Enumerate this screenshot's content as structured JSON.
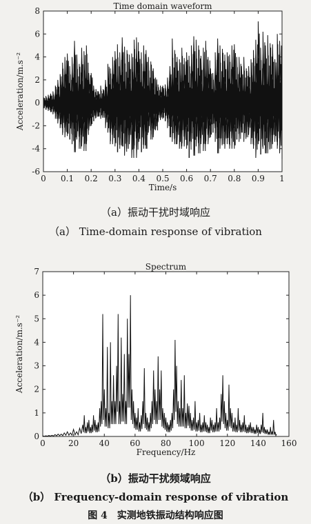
{
  "charts": [
    {
      "chart_data": {
        "type": "line",
        "title": "Time domain waveform",
        "xlabel": "Time/s",
        "ylabel": "Acceleration/m.s⁻²",
        "xlim": [
          0,
          1
        ],
        "ylim": [
          -6,
          8
        ],
        "xticks": [
          0,
          0.1,
          0.2,
          0.3,
          0.4,
          0.5,
          0.6,
          0.7,
          0.8,
          0.9,
          1
        ],
        "xtick_labels": [
          "0",
          "0.1",
          "0.2",
          "0.3",
          "0.4",
          "0.5",
          "0.6",
          "0.7",
          "0.8",
          "0.9",
          "1"
        ],
        "yticks": [
          -6,
          -4,
          -2,
          0,
          2,
          4,
          6,
          8
        ],
        "ytick_labels": [
          "-6",
          "-4",
          "-2",
          "0",
          "2",
          "4",
          "6",
          "8"
        ],
        "grid": false,
        "series": [
          {
            "x": [
              0.0,
              0.01,
              0.02,
              0.03,
              0.04,
              0.05,
              0.06,
              0.07,
              0.08,
              0.09,
              0.1,
              0.11,
              0.12,
              0.13,
              0.14,
              0.15,
              0.16,
              0.17,
              0.18,
              0.19,
              0.2,
              0.21,
              0.22,
              0.23,
              0.24,
              0.25,
              0.26,
              0.27,
              0.28,
              0.29,
              0.3,
              0.31,
              0.32,
              0.33,
              0.34,
              0.35,
              0.36,
              0.37,
              0.38,
              0.39,
              0.4,
              0.41,
              0.42,
              0.43,
              0.44,
              0.45,
              0.46,
              0.47,
              0.48,
              0.49,
              0.5,
              0.51,
              0.52,
              0.53,
              0.54,
              0.55,
              0.56,
              0.57,
              0.58,
              0.59,
              0.6,
              0.61,
              0.62,
              0.63,
              0.64,
              0.65,
              0.66,
              0.67,
              0.68,
              0.69,
              0.7,
              0.71,
              0.72,
              0.73,
              0.74,
              0.75,
              0.76,
              0.77,
              0.78,
              0.79,
              0.8,
              0.81,
              0.82,
              0.83,
              0.84,
              0.85,
              0.86,
              0.87,
              0.88,
              0.89,
              0.9,
              0.91,
              0.92,
              0.93,
              0.94,
              0.95,
              0.96,
              0.97,
              0.98,
              0.99,
              1.0
            ],
            "ymax": [
              0.5,
              0.6,
              0.7,
              0.8,
              1.0,
              1.5,
              2.0,
              2.5,
              3.5,
              4.0,
              4.3,
              3.2,
              4.0,
              5.4,
              4.2,
              3.4,
              4.8,
              4.5,
              5.0,
              2.6,
              2.6,
              1.5,
              1.2,
              1.0,
              1.5,
              1.2,
              2.0,
              3.4,
              3.0,
              4.0,
              4.5,
              5.1,
              4.4,
              5.7,
              4.9,
              4.6,
              4.2,
              4.3,
              5.5,
              5.7,
              4.5,
              4.4,
              5.0,
              4.6,
              4.0,
              3.6,
              3.0,
              2.2,
              1.6,
              1.5,
              1.5,
              1.6,
              2.2,
              3.2,
              5.6,
              4.6,
              4.0,
              3.8,
              4.8,
              3.9,
              4.4,
              4.1,
              5.0,
              5.8,
              5.5,
              5.0,
              4.1,
              4.8,
              5.4,
              4.0,
              3.0,
              2.6,
              4.4,
              5.6,
              5.0,
              4.7,
              4.2,
              4.4,
              4.2,
              5.0,
              5.1,
              4.0,
              4.0,
              3.2,
              4.0,
              3.0,
              3.2,
              3.8,
              4.6,
              5.5,
              7.1,
              4.8,
              6.2,
              5.0,
              5.9,
              5.2,
              5.1,
              3.8,
              6.0,
              5.4,
              4.9
            ],
            "ymin": [
              -0.5,
              -0.6,
              -0.7,
              -0.8,
              -1.0,
              -1.4,
              -1.8,
              -2.2,
              -2.8,
              -3.0,
              -2.9,
              -3.2,
              -3.6,
              -4.3,
              -3.2,
              -4.0,
              -3.8,
              -4.2,
              -3.6,
              -2.4,
              -2.0,
              -1.6,
              -1.3,
              -1.2,
              -1.4,
              -1.3,
              -2.2,
              -2.6,
              -3.6,
              -3.6,
              -3.8,
              -4.3,
              -4.0,
              -3.8,
              -4.6,
              -4.0,
              -3.6,
              -4.8,
              -4.0,
              -4.8,
              -3.4,
              -4.3,
              -4.0,
              -4.0,
              -2.6,
              -3.2,
              -3.0,
              -2.4,
              -1.7,
              -1.5,
              -1.4,
              -1.6,
              -2.2,
              -3.0,
              -3.4,
              -3.6,
              -3.6,
              -4.0,
              -3.8,
              -3.8,
              -4.0,
              -4.8,
              -3.4,
              -4.6,
              -3.8,
              -4.4,
              -3.6,
              -4.2,
              -3.6,
              -3.6,
              -3.0,
              -2.6,
              -3.4,
              -4.4,
              -4.0,
              -3.6,
              -4.0,
              -3.6,
              -4.0,
              -4.0,
              -4.0,
              -3.2,
              -3.4,
              -2.6,
              -3.4,
              -3.0,
              -2.8,
              -3.6,
              -4.0,
              -4.8,
              -3.6,
              -4.5,
              -4.0,
              -4.4,
              -4.4,
              -4.0,
              -3.6,
              -3.4,
              -4.0,
              -4.4,
              -4.9
            ]
          }
        ]
      },
      "caption_cn": "（a）振动干扰时域响应",
      "caption_en": "（a） Time-domain response of vibration"
    },
    {
      "chart_data": {
        "type": "line",
        "title": "Spectrum",
        "xlabel": "Frequency/Hz",
        "ylabel": "Acceleration/m.s⁻²",
        "xlim": [
          0,
          160
        ],
        "ylim": [
          0,
          7
        ],
        "xticks": [
          0,
          20,
          40,
          60,
          80,
          100,
          120,
          140,
          160
        ],
        "xtick_labels": [
          "0",
          "20",
          "40",
          "60",
          "80",
          "100",
          "120",
          "140",
          "160"
        ],
        "yticks": [
          0,
          1,
          2,
          3,
          4,
          5,
          6,
          7
        ],
        "ytick_labels": [
          "0",
          "1",
          "2",
          "3",
          "4",
          "5",
          "6",
          "7"
        ],
        "grid": false,
        "series": [
          {
            "x": [
              0,
              2,
              4,
              6,
              8,
              10,
              12,
              14,
              16,
              18,
              20,
              22,
              24,
              26,
              27,
              28,
              29,
              30,
              31,
              32,
              33,
              34,
              35,
              36,
              37,
              38,
              39,
              40,
              41,
              42,
              43,
              44,
              45,
              46,
              47,
              48,
              49,
              50,
              51,
              52,
              53,
              54,
              55,
              56,
              57,
              58,
              59,
              60,
              61,
              62,
              63,
              64,
              65,
              66,
              67,
              68,
              69,
              70,
              71,
              72,
              73,
              74,
              75,
              76,
              77,
              78,
              79,
              80,
              81,
              82,
              83,
              84,
              85,
              86,
              87,
              88,
              89,
              90,
              91,
              92,
              93,
              94,
              95,
              96,
              97,
              98,
              99,
              100,
              101,
              102,
              103,
              104,
              105,
              106,
              107,
              108,
              109,
              110,
              111,
              112,
              113,
              114,
              115,
              116,
              117,
              118,
              119,
              120,
              121,
              122,
              123,
              124,
              125,
              126,
              127,
              128,
              129,
              130,
              131,
              132,
              133,
              134,
              135,
              136,
              137,
              138,
              139,
              140,
              141,
              142,
              143,
              144,
              145,
              146,
              147,
              148,
              149,
              150,
              151,
              152
            ],
            "y": [
              0.02,
              0.03,
              0.04,
              0.05,
              0.08,
              0.1,
              0.1,
              0.15,
              0.2,
              0.15,
              0.3,
              0.2,
              0.35,
              0.5,
              0.9,
              0.4,
              0.6,
              0.7,
              0.4,
              0.5,
              0.9,
              0.7,
              0.5,
              0.6,
              1.2,
              1.5,
              5.2,
              2.0,
              1.2,
              3.8,
              1.0,
              4.0,
              1.5,
              2.6,
              1.5,
              3.0,
              5.2,
              1.5,
              4.2,
              1.8,
              3.5,
              1.5,
              5.0,
              3.5,
              6.0,
              2.0,
              1.5,
              1.0,
              0.8,
              1.2,
              0.6,
              0.9,
              1.5,
              2.9,
              1.0,
              0.8,
              0.6,
              1.0,
              1.5,
              2.8,
              2.0,
              1.5,
              3.4,
              2.0,
              2.8,
              1.2,
              1.0,
              0.8,
              0.6,
              0.5,
              0.7,
              1.0,
              2.0,
              4.1,
              3.0,
              1.5,
              1.2,
              2.4,
              1.2,
              2.6,
              1.0,
              1.4,
              1.3,
              1.0,
              0.7,
              0.8,
              1.5,
              0.6,
              0.7,
              1.0,
              0.5,
              0.6,
              0.9,
              0.6,
              0.5,
              0.4,
              0.8,
              0.7,
              0.5,
              0.6,
              1.2,
              0.6,
              0.8,
              1.8,
              2.6,
              1.5,
              1.0,
              0.7,
              2.2,
              1.2,
              1.0,
              0.6,
              0.8,
              0.5,
              1.2,
              0.7,
              0.5,
              0.6,
              0.9,
              0.5,
              0.4,
              0.5,
              0.6,
              0.4,
              0.4,
              0.3,
              0.5,
              0.4,
              0.3,
              0.5,
              1.0,
              0.4,
              0.3,
              0.3,
              0.2,
              0.4,
              0.2,
              0.7,
              0.2,
              0.1
            ]
          }
        ]
      },
      "caption_cn": "（b）振动干扰频域响应",
      "caption_en": "（b） Frequency-domain response of vibration"
    }
  ],
  "figure_title": "图 4　实测地铁振动结构响应图"
}
